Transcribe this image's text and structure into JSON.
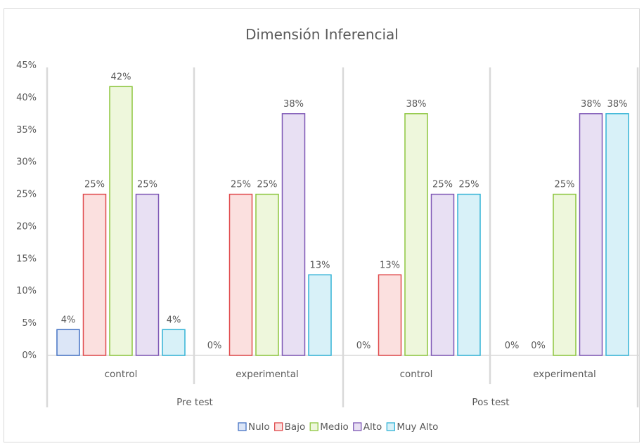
{
  "chart_data": {
    "type": "bar",
    "title": "Dimensión Inferencial",
    "groups": [
      {
        "label": "Pre test",
        "categories": [
          "control",
          "experimental"
        ]
      },
      {
        "label": "Pos test",
        "categories": [
          "control",
          "experimental"
        ]
      }
    ],
    "categories": [
      "control",
      "experimental",
      "control",
      "experimental"
    ],
    "series": [
      {
        "name": "Nulo",
        "values": [
          4,
          0,
          0,
          0
        ],
        "labels": [
          "4%",
          "0%",
          "0%",
          "0%"
        ],
        "fill": "#dce6f7",
        "stroke": "#4472c4"
      },
      {
        "name": "Bajo",
        "values": [
          25,
          25,
          12.5,
          0
        ],
        "labels": [
          "25%",
          "25%",
          "13%",
          "0%"
        ],
        "fill": "#fbe0df",
        "stroke": "#e0494b"
      },
      {
        "name": "Medio",
        "values": [
          41.7,
          25,
          37.5,
          25
        ],
        "labels": [
          "42%",
          "25%",
          "38%",
          "25%"
        ],
        "fill": "#eef7dc",
        "stroke": "#8dc63f"
      },
      {
        "name": "Alto",
        "values": [
          25,
          37.5,
          25,
          37.5
        ],
        "labels": [
          "25%",
          "38%",
          "25%",
          "38%"
        ],
        "fill": "#e8e0f3",
        "stroke": "#7e57b5"
      },
      {
        "name": "Muy Alto",
        "values": [
          4,
          12.5,
          25,
          37.5
        ],
        "labels": [
          "4%",
          "13%",
          "25%",
          "38%"
        ],
        "fill": "#d8f1f8",
        "stroke": "#33b3d6"
      }
    ],
    "yticks": [
      "0%",
      "5%",
      "10%",
      "15%",
      "20%",
      "25%",
      "30%",
      "35%",
      "40%",
      "45%"
    ],
    "ylim": [
      0,
      45
    ],
    "grid": false,
    "legend": "bottom"
  }
}
